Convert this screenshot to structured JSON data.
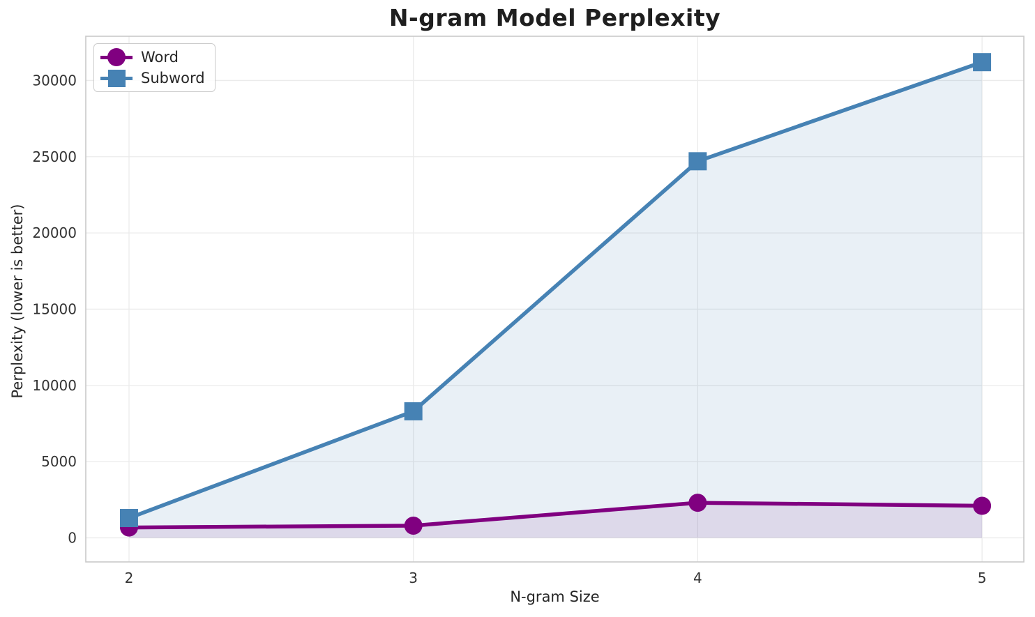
{
  "chart_data": {
    "type": "line",
    "title": "N-gram Model Perplexity",
    "xlabel": "N-gram Size",
    "ylabel": "Perplexity (lower is better)",
    "x": [
      2,
      3,
      4,
      5
    ],
    "series": [
      {
        "name": "Word",
        "values": [
          680,
          800,
          2300,
          2100
        ],
        "color": "#800080",
        "marker": "circle",
        "fill_alpha": 0.1
      },
      {
        "name": "Subword",
        "values": [
          1300,
          8300,
          24700,
          31200
        ],
        "color": "#4682B4",
        "marker": "square",
        "fill_alpha": 0.12
      }
    ],
    "xticks": [
      "2",
      "3",
      "4",
      "5"
    ],
    "xtick_values": [
      2,
      3,
      4,
      5
    ],
    "yticks": [
      "0",
      "5000",
      "10000",
      "15000",
      "20000",
      "25000",
      "30000"
    ],
    "ytick_values": [
      0,
      5000,
      10000,
      15000,
      20000,
      25000,
      30000
    ],
    "xlim": [
      1.848,
      5.147
    ],
    "ylim": [
      -1580,
      32900
    ],
    "fill_to_zero": true,
    "grid": true,
    "legend_position": "upper-left",
    "colors": {
      "grid": "#ebebeb",
      "plot_border": "#c9c9c9",
      "tick_label": "#333333",
      "background": "#ffffff"
    }
  }
}
